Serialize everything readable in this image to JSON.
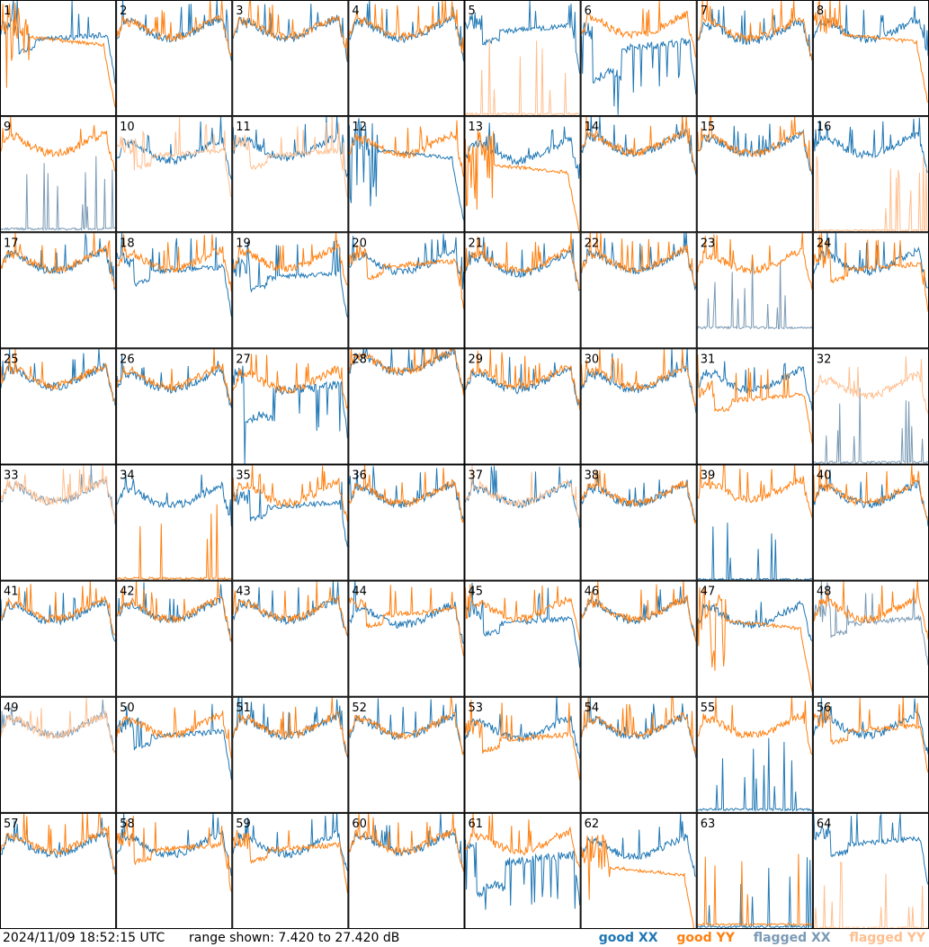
{
  "footer": {
    "timestamp": "2024/11/09 18:52:15 UTC",
    "range_text": "range shown: 7.420 to 27.420 dB",
    "legend": {
      "good_xx": "good XX",
      "good_yy": "good YY",
      "flagged_xx": "flagged XX",
      "flagged_yy": "flagged YY"
    }
  },
  "colors": {
    "good_xx": "#1f77b4",
    "good_yy": "#ff7f0e",
    "flagged_xx": "#7a9ab5",
    "flagged_yy": "#ffbf8f",
    "panel_border": "#000000"
  },
  "chart_data": {
    "type": "line",
    "layout": "8x8 small multiples",
    "ylim": [
      7.42,
      27.42
    ],
    "yunit": "dB",
    "panels": [
      {
        "label": "1",
        "xx": {
          "shape": "dipflat",
          "level": 20.5,
          "flag": false
        },
        "yy": {
          "shape": "dropdecay",
          "level": 21,
          "flag": false,
          "spikes": true
        }
      },
      {
        "label": "2",
        "xx": {
          "shape": "wave",
          "level": 23,
          "flag": false
        },
        "yy": {
          "shape": "wave",
          "level": 23.2,
          "flag": false
        }
      },
      {
        "label": "3",
        "xx": {
          "shape": "wave",
          "level": 23,
          "flag": false
        },
        "yy": {
          "shape": "wave",
          "level": 23.3,
          "flag": false
        }
      },
      {
        "label": "4",
        "xx": {
          "shape": "wave",
          "level": 23,
          "flag": false
        },
        "yy": {
          "shape": "wave",
          "level": 23.3,
          "flag": false
        }
      },
      {
        "label": "5",
        "xx": {
          "shape": "dipflat",
          "level": 22,
          "flag": false
        },
        "yy": {
          "shape": "flatlow",
          "level": 7.8,
          "flag": true
        }
      },
      {
        "label": "6",
        "xx": {
          "shape": "deepdip",
          "level": 19,
          "flag": false
        },
        "yy": {
          "shape": "wave",
          "level": 23.5,
          "flag": false
        }
      },
      {
        "label": "7",
        "xx": {
          "shape": "wave",
          "level": 22.5,
          "flag": false
        },
        "yy": {
          "shape": "wave",
          "level": 23,
          "flag": false
        }
      },
      {
        "label": "8",
        "xx": {
          "shape": "wave",
          "level": 22.8,
          "flag": false
        },
        "yy": {
          "shape": "dropdecay",
          "level": 21.5,
          "flag": false
        }
      },
      {
        "label": "9",
        "xx": {
          "shape": "flatlow",
          "level": 8,
          "flag": true
        },
        "yy": {
          "shape": "wave",
          "level": 23.2,
          "flag": false
        }
      },
      {
        "label": "10",
        "xx": {
          "shape": "wave",
          "level": 22,
          "flag": false
        },
        "yy": {
          "shape": "dipflat",
          "level": 20.5,
          "flag": true
        }
      },
      {
        "label": "11",
        "xx": {
          "shape": "wave",
          "level": 22.5,
          "flag": false
        },
        "yy": {
          "shape": "dipflat",
          "level": 20.5,
          "flag": true
        }
      },
      {
        "label": "12",
        "xx": {
          "shape": "dropdecay",
          "level": 21.5,
          "flag": false
        },
        "yy": {
          "shape": "wave",
          "level": 23,
          "flag": false
        }
      },
      {
        "label": "13",
        "xx": {
          "shape": "wave",
          "level": 22,
          "flag": false
        },
        "yy": {
          "shape": "dropdecay",
          "level": 19,
          "flag": false
        }
      },
      {
        "label": "14",
        "xx": {
          "shape": "wave",
          "level": 23.2,
          "flag": false
        },
        "yy": {
          "shape": "wave",
          "level": 23.4,
          "flag": false
        }
      },
      {
        "label": "15",
        "xx": {
          "shape": "wave",
          "level": 23,
          "flag": false
        },
        "yy": {
          "shape": "wave",
          "level": 23.2,
          "flag": false
        }
      },
      {
        "label": "16",
        "xx": {
          "shape": "wave",
          "level": 23,
          "flag": false
        },
        "yy": {
          "shape": "flatlow",
          "level": 7.7,
          "flag": true
        }
      },
      {
        "label": "17",
        "xx": {
          "shape": "wave",
          "level": 23,
          "flag": false
        },
        "yy": {
          "shape": "wave",
          "level": 23.2,
          "flag": false
        }
      },
      {
        "label": "18",
        "xx": {
          "shape": "dipflat",
          "level": 20.5,
          "flag": false
        },
        "yy": {
          "shape": "wave",
          "level": 23.2,
          "flag": false
        }
      },
      {
        "label": "19",
        "xx": {
          "shape": "dipflat",
          "level": 19.5,
          "flag": false
        },
        "yy": {
          "shape": "wave",
          "level": 23.4,
          "flag": false
        }
      },
      {
        "label": "20",
        "xx": {
          "shape": "wave",
          "level": 22.8,
          "flag": false
        },
        "yy": {
          "shape": "dipflat",
          "level": 21.5,
          "flag": false
        }
      },
      {
        "label": "21",
        "xx": {
          "shape": "wave",
          "level": 22.5,
          "flag": false
        },
        "yy": {
          "shape": "wave",
          "level": 23,
          "flag": false
        }
      },
      {
        "label": "22",
        "xx": {
          "shape": "wave",
          "level": 23,
          "flag": false
        },
        "yy": {
          "shape": "wave",
          "level": 23.2,
          "flag": false
        }
      },
      {
        "label": "23",
        "xx": {
          "shape": "flatlow",
          "level": 11,
          "flag": true
        },
        "yy": {
          "shape": "wave",
          "level": 23,
          "flag": false
        }
      },
      {
        "label": "24",
        "xx": {
          "shape": "wave",
          "level": 22.8,
          "flag": false
        },
        "yy": {
          "shape": "dipflat",
          "level": 21,
          "flag": false
        }
      },
      {
        "label": "25",
        "xx": {
          "shape": "wave",
          "level": 23,
          "flag": false
        },
        "yy": {
          "shape": "wave",
          "level": 23.2,
          "flag": false
        }
      },
      {
        "label": "26",
        "xx": {
          "shape": "wave",
          "level": 22.5,
          "flag": false
        },
        "yy": {
          "shape": "wave",
          "level": 23,
          "flag": false
        }
      },
      {
        "label": "27",
        "xx": {
          "shape": "deepdip",
          "level": 20,
          "flag": false
        },
        "yy": {
          "shape": "wave",
          "level": 22.5,
          "flag": false
        }
      },
      {
        "label": "28",
        "xx": {
          "shape": "wave",
          "level": 25.5,
          "flag": false
        },
        "yy": {
          "shape": "wave",
          "level": 25.6,
          "flag": false
        }
      },
      {
        "label": "29",
        "xx": {
          "shape": "wave",
          "level": 22.5,
          "flag": false
        },
        "yy": {
          "shape": "wave",
          "level": 23,
          "flag": false
        }
      },
      {
        "label": "30",
        "xx": {
          "shape": "wave",
          "level": 22.5,
          "flag": false
        },
        "yy": {
          "shape": "wave",
          "level": 23,
          "flag": false
        }
      },
      {
        "label": "31",
        "xx": {
          "shape": "wave",
          "level": 22.5,
          "flag": false
        },
        "yy": {
          "shape": "dipflat",
          "level": 18.5,
          "flag": false
        }
      },
      {
        "label": "32",
        "xx": {
          "shape": "flatlow",
          "level": 7.8,
          "flag": true
        },
        "yy": {
          "shape": "wave",
          "level": 21.5,
          "flag": true
        }
      },
      {
        "label": "33",
        "xx": {
          "shape": "wave",
          "level": 23.2,
          "flag": true
        },
        "yy": {
          "shape": "wave",
          "level": 23.3,
          "flag": true
        }
      },
      {
        "label": "34",
        "xx": {
          "shape": "wave",
          "level": 22.5,
          "flag": false
        },
        "yy": {
          "shape": "flatlow",
          "level": 7.8,
          "flag": false
        }
      },
      {
        "label": "35",
        "xx": {
          "shape": "dipflat",
          "level": 20,
          "flag": false
        },
        "yy": {
          "shape": "wave",
          "level": 23,
          "flag": false
        }
      },
      {
        "label": "36",
        "xx": {
          "shape": "wave",
          "level": 22.8,
          "flag": false
        },
        "yy": {
          "shape": "wave",
          "level": 23,
          "flag": false
        }
      },
      {
        "label": "37",
        "xx": {
          "shape": "wave",
          "level": 22.8,
          "flag": false
        },
        "yy": {
          "shape": "wave",
          "level": 23,
          "flag": true
        }
      },
      {
        "label": "38",
        "xx": {
          "shape": "wave",
          "level": 22.8,
          "flag": false
        },
        "yy": {
          "shape": "wave",
          "level": 23,
          "flag": false
        }
      },
      {
        "label": "39",
        "xx": {
          "shape": "flatlow",
          "level": 7.6,
          "flag": false
        },
        "yy": {
          "shape": "wave",
          "level": 23.5,
          "flag": false
        }
      },
      {
        "label": "40",
        "xx": {
          "shape": "wave",
          "level": 22.8,
          "flag": false
        },
        "yy": {
          "shape": "wave",
          "level": 23,
          "flag": false
        }
      },
      {
        "label": "41",
        "xx": {
          "shape": "wave",
          "level": 22.5,
          "flag": false
        },
        "yy": {
          "shape": "wave",
          "level": 23,
          "flag": false
        }
      },
      {
        "label": "42",
        "xx": {
          "shape": "wave",
          "level": 22.8,
          "flag": false
        },
        "yy": {
          "shape": "wave",
          "level": 23,
          "flag": false
        }
      },
      {
        "label": "43",
        "xx": {
          "shape": "wave",
          "level": 22.8,
          "flag": false
        },
        "yy": {
          "shape": "wave",
          "level": 23,
          "flag": false
        }
      },
      {
        "label": "44",
        "xx": {
          "shape": "wave",
          "level": 22,
          "flag": false
        },
        "yy": {
          "shape": "dipflat",
          "level": 21.5,
          "flag": false
        }
      },
      {
        "label": "45",
        "xx": {
          "shape": "dipflat",
          "level": 20,
          "flag": false
        },
        "yy": {
          "shape": "wave",
          "level": 23,
          "flag": false
        }
      },
      {
        "label": "46",
        "xx": {
          "shape": "wave",
          "level": 22.8,
          "flag": false
        },
        "yy": {
          "shape": "wave",
          "level": 23,
          "flag": false
        }
      },
      {
        "label": "47",
        "xx": {
          "shape": "wave",
          "level": 22,
          "flag": false
        },
        "yy": {
          "shape": "dropdecay",
          "level": 20.5,
          "flag": false
        }
      },
      {
        "label": "48",
        "xx": {
          "shape": "dipflat",
          "level": 20,
          "flag": true
        },
        "yy": {
          "shape": "wave",
          "level": 23,
          "flag": false
        }
      },
      {
        "label": "49",
        "xx": {
          "shape": "wave",
          "level": 23,
          "flag": true
        },
        "yy": {
          "shape": "wave",
          "level": 23,
          "flag": true
        }
      },
      {
        "label": "50",
        "xx": {
          "shape": "dipflat",
          "level": 20.5,
          "flag": false
        },
        "yy": {
          "shape": "wave",
          "level": 23,
          "flag": false
        }
      },
      {
        "label": "51",
        "xx": {
          "shape": "wave",
          "level": 22.8,
          "flag": false
        },
        "yy": {
          "shape": "wave",
          "level": 23,
          "flag": false
        }
      },
      {
        "label": "52",
        "xx": {
          "shape": "wave",
          "level": 22.8,
          "flag": false
        },
        "yy": {
          "shape": "wave",
          "level": 23,
          "flag": false
        }
      },
      {
        "label": "53",
        "xx": {
          "shape": "wave",
          "level": 22.5,
          "flag": false
        },
        "yy": {
          "shape": "dipflat",
          "level": 20,
          "flag": false
        }
      },
      {
        "label": "54",
        "xx": {
          "shape": "wave",
          "level": 22.8,
          "flag": false
        },
        "yy": {
          "shape": "wave",
          "level": 23,
          "flag": false
        }
      },
      {
        "label": "55",
        "xx": {
          "shape": "flatlow",
          "level": 8,
          "flag": false
        },
        "yy": {
          "shape": "wave",
          "level": 23,
          "flag": false
        }
      },
      {
        "label": "56",
        "xx": {
          "shape": "wave",
          "level": 23,
          "flag": false
        },
        "yy": {
          "shape": "dipflat",
          "level": 21.5,
          "flag": false
        }
      },
      {
        "label": "57",
        "xx": {
          "shape": "wave",
          "level": 22.5,
          "flag": false
        },
        "yy": {
          "shape": "wave",
          "level": 23,
          "flag": false
        }
      },
      {
        "label": "58",
        "xx": {
          "shape": "wave",
          "level": 22.5,
          "flag": false
        },
        "yy": {
          "shape": "dipflat",
          "level": 21,
          "flag": false
        }
      },
      {
        "label": "59",
        "xx": {
          "shape": "wave",
          "level": 22.5,
          "flag": false
        },
        "yy": {
          "shape": "dipflat",
          "level": 21,
          "flag": false
        }
      },
      {
        "label": "60",
        "xx": {
          "shape": "wave",
          "level": 22.8,
          "flag": false
        },
        "yy": {
          "shape": "wave",
          "level": 23,
          "flag": false
        }
      },
      {
        "label": "61",
        "xx": {
          "shape": "deepdip",
          "level": 19,
          "flag": false
        },
        "yy": {
          "shape": "wave",
          "level": 23,
          "flag": false
        }
      },
      {
        "label": "62",
        "xx": {
          "shape": "wave",
          "level": 22,
          "flag": false
        },
        "yy": {
          "shape": "dropdecay",
          "level": 18,
          "flag": false
        }
      },
      {
        "label": "63",
        "xx": {
          "shape": "flatlow",
          "level": 7.8,
          "flag": false
        },
        "yy": {
          "shape": "flatlow",
          "level": 8.2,
          "flag": false
        }
      },
      {
        "label": "64",
        "xx": {
          "shape": "dipflat",
          "level": 22,
          "flag": false
        },
        "yy": {
          "shape": "flatlow",
          "level": 7.6,
          "flag": true
        }
      }
    ]
  }
}
